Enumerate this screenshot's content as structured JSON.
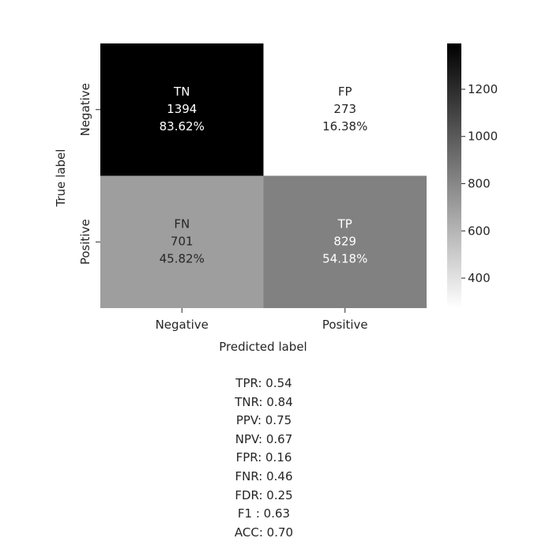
{
  "chart_data": {
    "type": "heatmap",
    "xlabel": "Predicted label",
    "ylabel": "True label",
    "x_categories": [
      "Negative",
      "Positive"
    ],
    "y_categories": [
      "Negative",
      "Positive"
    ],
    "cells": [
      {
        "row": 0,
        "col": 0,
        "name": "TN",
        "count": 1394,
        "percent": "83.62%"
      },
      {
        "row": 0,
        "col": 1,
        "name": "FP",
        "count": 273,
        "percent": "16.38%"
      },
      {
        "row": 1,
        "col": 0,
        "name": "FN",
        "count": 701,
        "percent": "45.82%"
      },
      {
        "row": 1,
        "col": 1,
        "name": "TP",
        "count": 829,
        "percent": "54.18%"
      }
    ],
    "colormap": "Greys",
    "colorbar": {
      "range": [
        273,
        1394
      ],
      "ticks": [
        400,
        600,
        800,
        1000,
        1200
      ],
      "tick_labels": [
        "400",
        "600",
        "800",
        "1000",
        "1200"
      ]
    }
  },
  "metrics": [
    "TPR: 0.54",
    "TNR: 0.84",
    "PPV: 0.75",
    "NPV: 0.67",
    "FPR: 0.16",
    "FNR: 0.46",
    "FDR: 0.25",
    "F1 : 0.63",
    "ACC: 0.70"
  ]
}
